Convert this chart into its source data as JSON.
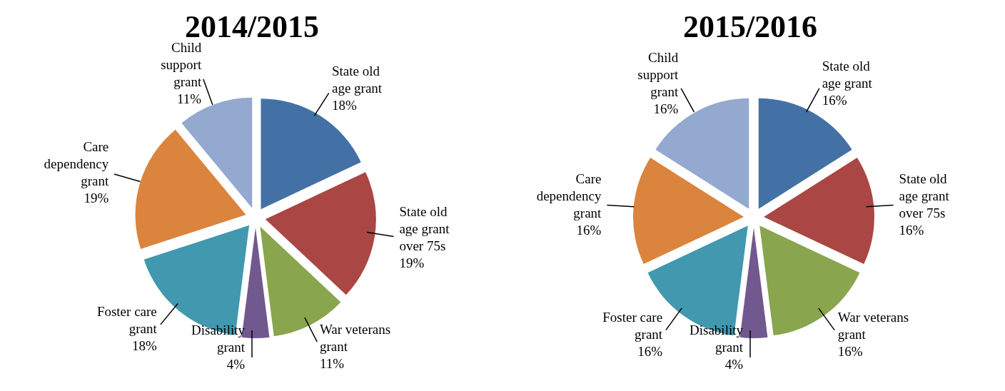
{
  "chart_data": [
    {
      "type": "pie",
      "title": "2014/2015",
      "categories": [
        "State old age grant",
        "State old age grant over 75s",
        "War veterans grant",
        "Disability grant",
        "Foster care grant",
        "Care dependency grant",
        "Child support grant"
      ],
      "values": [
        18,
        19,
        11,
        4,
        18,
        19,
        11
      ],
      "value_labels": [
        "18%",
        "19%",
        "11%",
        "4%",
        "18%",
        "19%",
        "11%"
      ],
      "colors": [
        "#4471a5",
        "#aa4643",
        "#89a54e",
        "#71588f",
        "#4198af",
        "#db843d",
        "#93a9cf"
      ]
    },
    {
      "type": "pie",
      "title": "2015/2016",
      "categories": [
        "State old age grant",
        "State old age grant over 75s",
        "War veterans grant",
        "Disability grant",
        "Foster care grant",
        "Care dependency grant",
        "Child support grant"
      ],
      "values": [
        16,
        16,
        16,
        4,
        16,
        16,
        16
      ],
      "value_labels": [
        "16%",
        "16%",
        "16%",
        "4%",
        "16%",
        "16%",
        "16%"
      ],
      "colors": [
        "#4471a5",
        "#aa4643",
        "#89a54e",
        "#71588f",
        "#4198af",
        "#db843d",
        "#93a9cf"
      ]
    }
  ]
}
